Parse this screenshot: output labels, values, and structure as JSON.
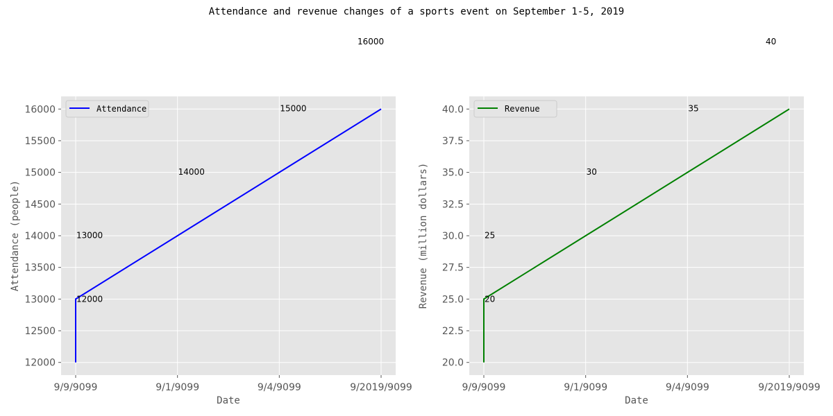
{
  "figure": {
    "title": "Attendance and revenue changes of a sports event on September 1-5, 2019"
  },
  "chart_data": [
    {
      "type": "line",
      "x": [
        "9/9/9099",
        "9/9/9099",
        "9/1/9099",
        "9/4/9099",
        "9/2019/9099"
      ],
      "x_ticks": [
        "9/9/9099",
        "9/1/9099",
        "9/4/9099",
        "9/2019/9099"
      ],
      "series": [
        {
          "name": "Attendance",
          "values": [
            12000,
            13000,
            14000,
            15000,
            16000
          ],
          "color": "#0000ff"
        }
      ],
      "point_labels": [
        "12000",
        "13000",
        "14000",
        "15000",
        "16000"
      ],
      "xlabel": "Date",
      "ylabel": "Attendance (people)",
      "ylim": [
        11800,
        16200
      ],
      "yticks": [
        12000,
        12500,
        13000,
        13500,
        14000,
        14500,
        15000,
        15500,
        16000
      ],
      "grid": true,
      "legend_position": "upper-left"
    },
    {
      "type": "line",
      "x": [
        "9/9/9099",
        "9/9/9099",
        "9/1/9099",
        "9/4/9099",
        "9/2019/9099"
      ],
      "x_ticks": [
        "9/9/9099",
        "9/1/9099",
        "9/4/9099",
        "9/2019/9099"
      ],
      "series": [
        {
          "name": "Revenue",
          "values": [
            20,
            25,
            30,
            35,
            40
          ],
          "color": "#008000"
        }
      ],
      "point_labels": [
        "20",
        "25",
        "30",
        "35",
        "40"
      ],
      "xlabel": "Date",
      "ylabel": "Revenue (million dollars)",
      "ylim": [
        19,
        41
      ],
      "yticks": [
        "20.0",
        "22.5",
        "25.0",
        "27.5",
        "30.0",
        "32.5",
        "35.0",
        "37.5",
        "40.0"
      ],
      "grid": true,
      "legend_position": "upper-left"
    }
  ]
}
